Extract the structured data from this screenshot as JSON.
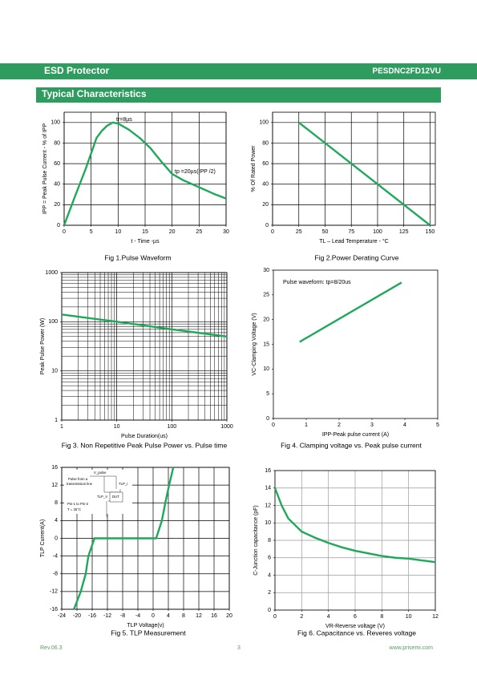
{
  "header": {
    "title": "ESD Protector",
    "part": "PESDNC2FD12VU"
  },
  "section_title": "Typical Characteristics",
  "chart_data": [
    {
      "type": "line",
      "caption": "Fig 1.Pulse Waveform",
      "x_label": "t - Time -µs",
      "y_label": "IPP = Peak Pulse Current - % of IPP",
      "annotations": [
        "tr=8µs",
        "tp =20µs(IPP /2)"
      ],
      "x": [
        0,
        2,
        4,
        6,
        7,
        8,
        9,
        10,
        12,
        14,
        16,
        18,
        20,
        22,
        25,
        28,
        30
      ],
      "series": [
        {
          "color": "#1ea95a",
          "values": [
            0,
            28,
            55,
            85,
            92,
            97,
            100,
            99,
            93,
            85,
            75,
            62,
            50,
            44,
            37,
            30,
            26
          ]
        }
      ],
      "xlim": [
        0,
        30
      ],
      "xticks": [
        0,
        5,
        10,
        15,
        20,
        25,
        30
      ],
      "ylim": [
        0,
        110
      ],
      "yticks": [
        0,
        20,
        40,
        60,
        80,
        100
      ],
      "grid": true,
      "grid_color": "#000000"
    },
    {
      "type": "line",
      "caption": "Fig 2.Power Derating Curve",
      "x_label": "TL – Lead Temperature - °C",
      "y_label": "% Of Rated Power",
      "annotations": [],
      "x": [
        25,
        150
      ],
      "series": [
        {
          "color": "#1ea95a",
          "values": [
            100,
            0
          ]
        }
      ],
      "xlim": [
        0,
        155
      ],
      "xticks": [
        0,
        25,
        50,
        75,
        100,
        125,
        150
      ],
      "ylim": [
        0,
        110
      ],
      "yticks": [
        0,
        20,
        40,
        60,
        80,
        100
      ],
      "grid": true,
      "grid_color": "#000000"
    },
    {
      "type": "line",
      "caption": "Fig 3. Non Repetitive Peak Pulse Power vs. Pulse time",
      "x_label": "Pulse Duration(us)",
      "y_label": "Peak Pulse Power (W)",
      "annotations": [],
      "x": [
        1,
        10,
        100,
        1000
      ],
      "series": [
        {
          "color": "#1ea95a",
          "values": [
            140,
            100,
            70,
            50
          ]
        }
      ],
      "xlim": [
        1,
        1000
      ],
      "xticks": [
        1,
        10,
        100,
        1000
      ],
      "ylim": [
        1,
        1000
      ],
      "yticks": [
        1,
        10,
        100,
        1000
      ],
      "xlog": true,
      "ylog": true,
      "grid": true,
      "grid_color": "#000000"
    },
    {
      "type": "line",
      "caption": "Fig 4. Clamping voltage vs. Peak pulse current",
      "x_label": "IPP-Peak pulse current (A)",
      "y_label": "VC-Clamping Voltage (V)",
      "annotations": [
        "Pulse waveform: tp=8/20us"
      ],
      "x": [
        0.8,
        3.9
      ],
      "series": [
        {
          "color": "#1ea95a",
          "values": [
            15.5,
            27.5
          ]
        }
      ],
      "xlim": [
        0,
        5
      ],
      "xticks": [
        0,
        1,
        2,
        3,
        4,
        5
      ],
      "ylim": [
        0,
        30
      ],
      "yticks": [
        0,
        5,
        10,
        15,
        20,
        25,
        30
      ],
      "grid": false
    },
    {
      "type": "line",
      "caption": "Fig 5. TLP Measurement",
      "x_label": "TLP Voltage(v)",
      "y_label": "TLP Current(A)",
      "annotations": [
        "V_pulse",
        "Pulse from a",
        "transmission line",
        "TLP_I",
        "TLP_V",
        "DUT",
        "Pin-1 to Pin-2",
        "T = 25°C"
      ],
      "x": [
        -20.8,
        -19,
        -17.7,
        -17,
        -15.4,
        0.8,
        2.3,
        3.2,
        4.2,
        5.3
      ],
      "series": [
        {
          "color": "#1ea95a",
          "values": [
            -16,
            -12,
            -8,
            -4,
            0,
            0,
            4,
            8,
            12,
            16
          ]
        }
      ],
      "xlim": [
        -24,
        20
      ],
      "xticks": [
        -24,
        -20,
        -16,
        -12,
        -8,
        -4,
        0,
        4,
        8,
        12,
        16,
        20
      ],
      "ylim": [
        -16,
        16
      ],
      "yticks": [
        -16,
        -12,
        -8,
        -4,
        0,
        4,
        8,
        12,
        16
      ],
      "grid": true,
      "grid_color": "#000000"
    },
    {
      "type": "line",
      "caption": "Fig 6. Capacitance vs. Reveres voltage",
      "x_label": "VR-Reverse voltage (V)",
      "y_label": "C-Junction capacitance (pF)",
      "annotations": [],
      "x": [
        0,
        0.5,
        1,
        2,
        3,
        4,
        5,
        6,
        7,
        8,
        9,
        10,
        11,
        12
      ],
      "series": [
        {
          "color": "#1ea95a",
          "values": [
            14,
            12,
            10.5,
            9,
            8.3,
            7.7,
            7.2,
            6.8,
            6.5,
            6.2,
            6,
            5.9,
            5.7,
            5.5
          ]
        }
      ],
      "xlim": [
        0,
        12
      ],
      "xticks": [
        0,
        2,
        4,
        6,
        8,
        10,
        12
      ],
      "ylim": [
        0,
        16
      ],
      "yticks": [
        0,
        2,
        4,
        6,
        8,
        10,
        12,
        14,
        16
      ],
      "grid": true,
      "grid_color": "#9a9a9a"
    }
  ],
  "footer": {
    "rev": "Rev.06.3",
    "page": "3",
    "url": "www.prisemi.com"
  }
}
